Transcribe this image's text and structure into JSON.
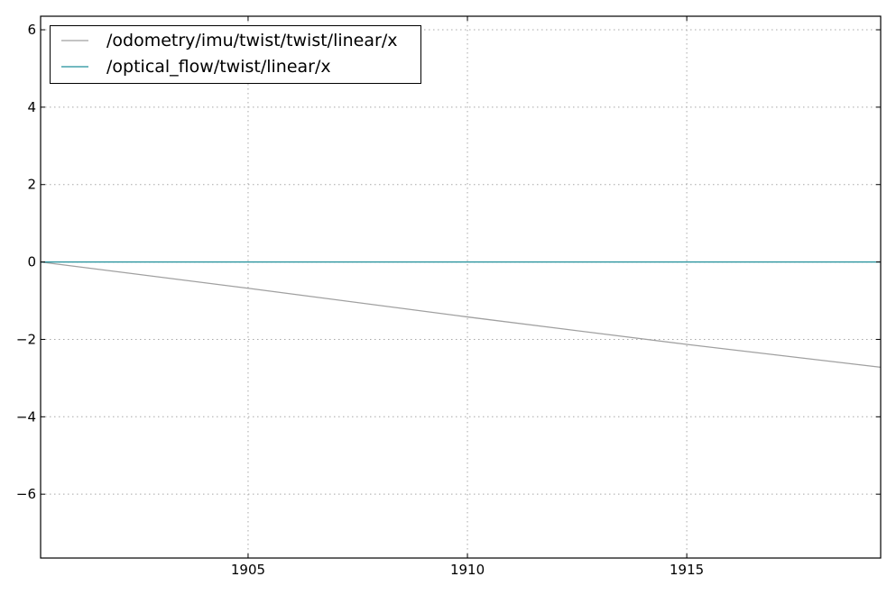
{
  "chart_data": {
    "type": "line",
    "title": "",
    "xlabel": "",
    "ylabel": "",
    "xlim": [
      1900.27,
      1919.42
    ],
    "ylim": [
      -7.65,
      6.35
    ],
    "xticks": [
      1905,
      1910,
      1915
    ],
    "yticks": [
      -6,
      -4,
      -2,
      0,
      2,
      4,
      6
    ],
    "x_tick_labels": [
      "1905",
      "1910",
      "1915"
    ],
    "y_tick_labels": [
      "−6",
      "−4",
      "−2",
      "0",
      "2",
      "4",
      "6"
    ],
    "grid": true,
    "legend_position": "top-left",
    "series": [
      {
        "name": "/odometry/imu/twist/twist/linear/x",
        "color": "#a0a0a0",
        "x": [
          1900.27,
          1905,
          1910,
          1915,
          1919.42
        ],
        "y": [
          0.0,
          -0.68,
          -1.42,
          -2.13,
          -2.72
        ]
      },
      {
        "name": "/optical_flow/twist/linear/x",
        "color": "#1f8f9a",
        "x": [
          1900.27,
          1919.42
        ],
        "y": [
          0.0,
          0.0
        ]
      }
    ]
  }
}
